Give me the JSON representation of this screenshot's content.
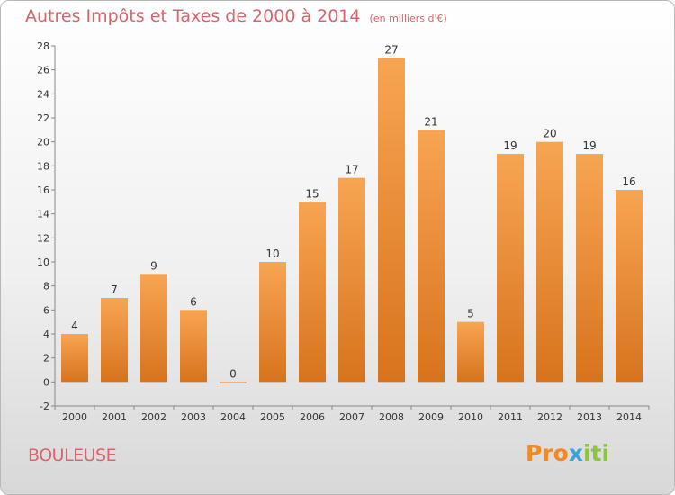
{
  "title": "Autres Impôts et Taxes de 2000 à 2014",
  "unit_note": "(en milliers d'€)",
  "commune": "BOULEUSE",
  "brand": {
    "p1": "Pro",
    "p2": "x",
    "p3": "iti"
  },
  "colors": {
    "bar_top": "#f7a552",
    "bar_bottom": "#d8731d",
    "title": "#d8646e"
  },
  "chart_data": {
    "type": "bar",
    "categories": [
      "2000",
      "2001",
      "2002",
      "2003",
      "2004",
      "2005",
      "2006",
      "2007",
      "2008",
      "2009",
      "2010",
      "2011",
      "2012",
      "2013",
      "2014"
    ],
    "values": [
      4,
      7,
      9,
      6,
      0,
      10,
      15,
      17,
      27,
      21,
      5,
      19,
      20,
      19,
      16
    ],
    "ylim": [
      -2,
      28
    ],
    "yticks": [
      -2,
      0,
      2,
      4,
      6,
      8,
      10,
      12,
      14,
      16,
      18,
      20,
      22,
      24,
      26,
      28
    ],
    "grid": false,
    "xlabel": "",
    "ylabel": ""
  }
}
